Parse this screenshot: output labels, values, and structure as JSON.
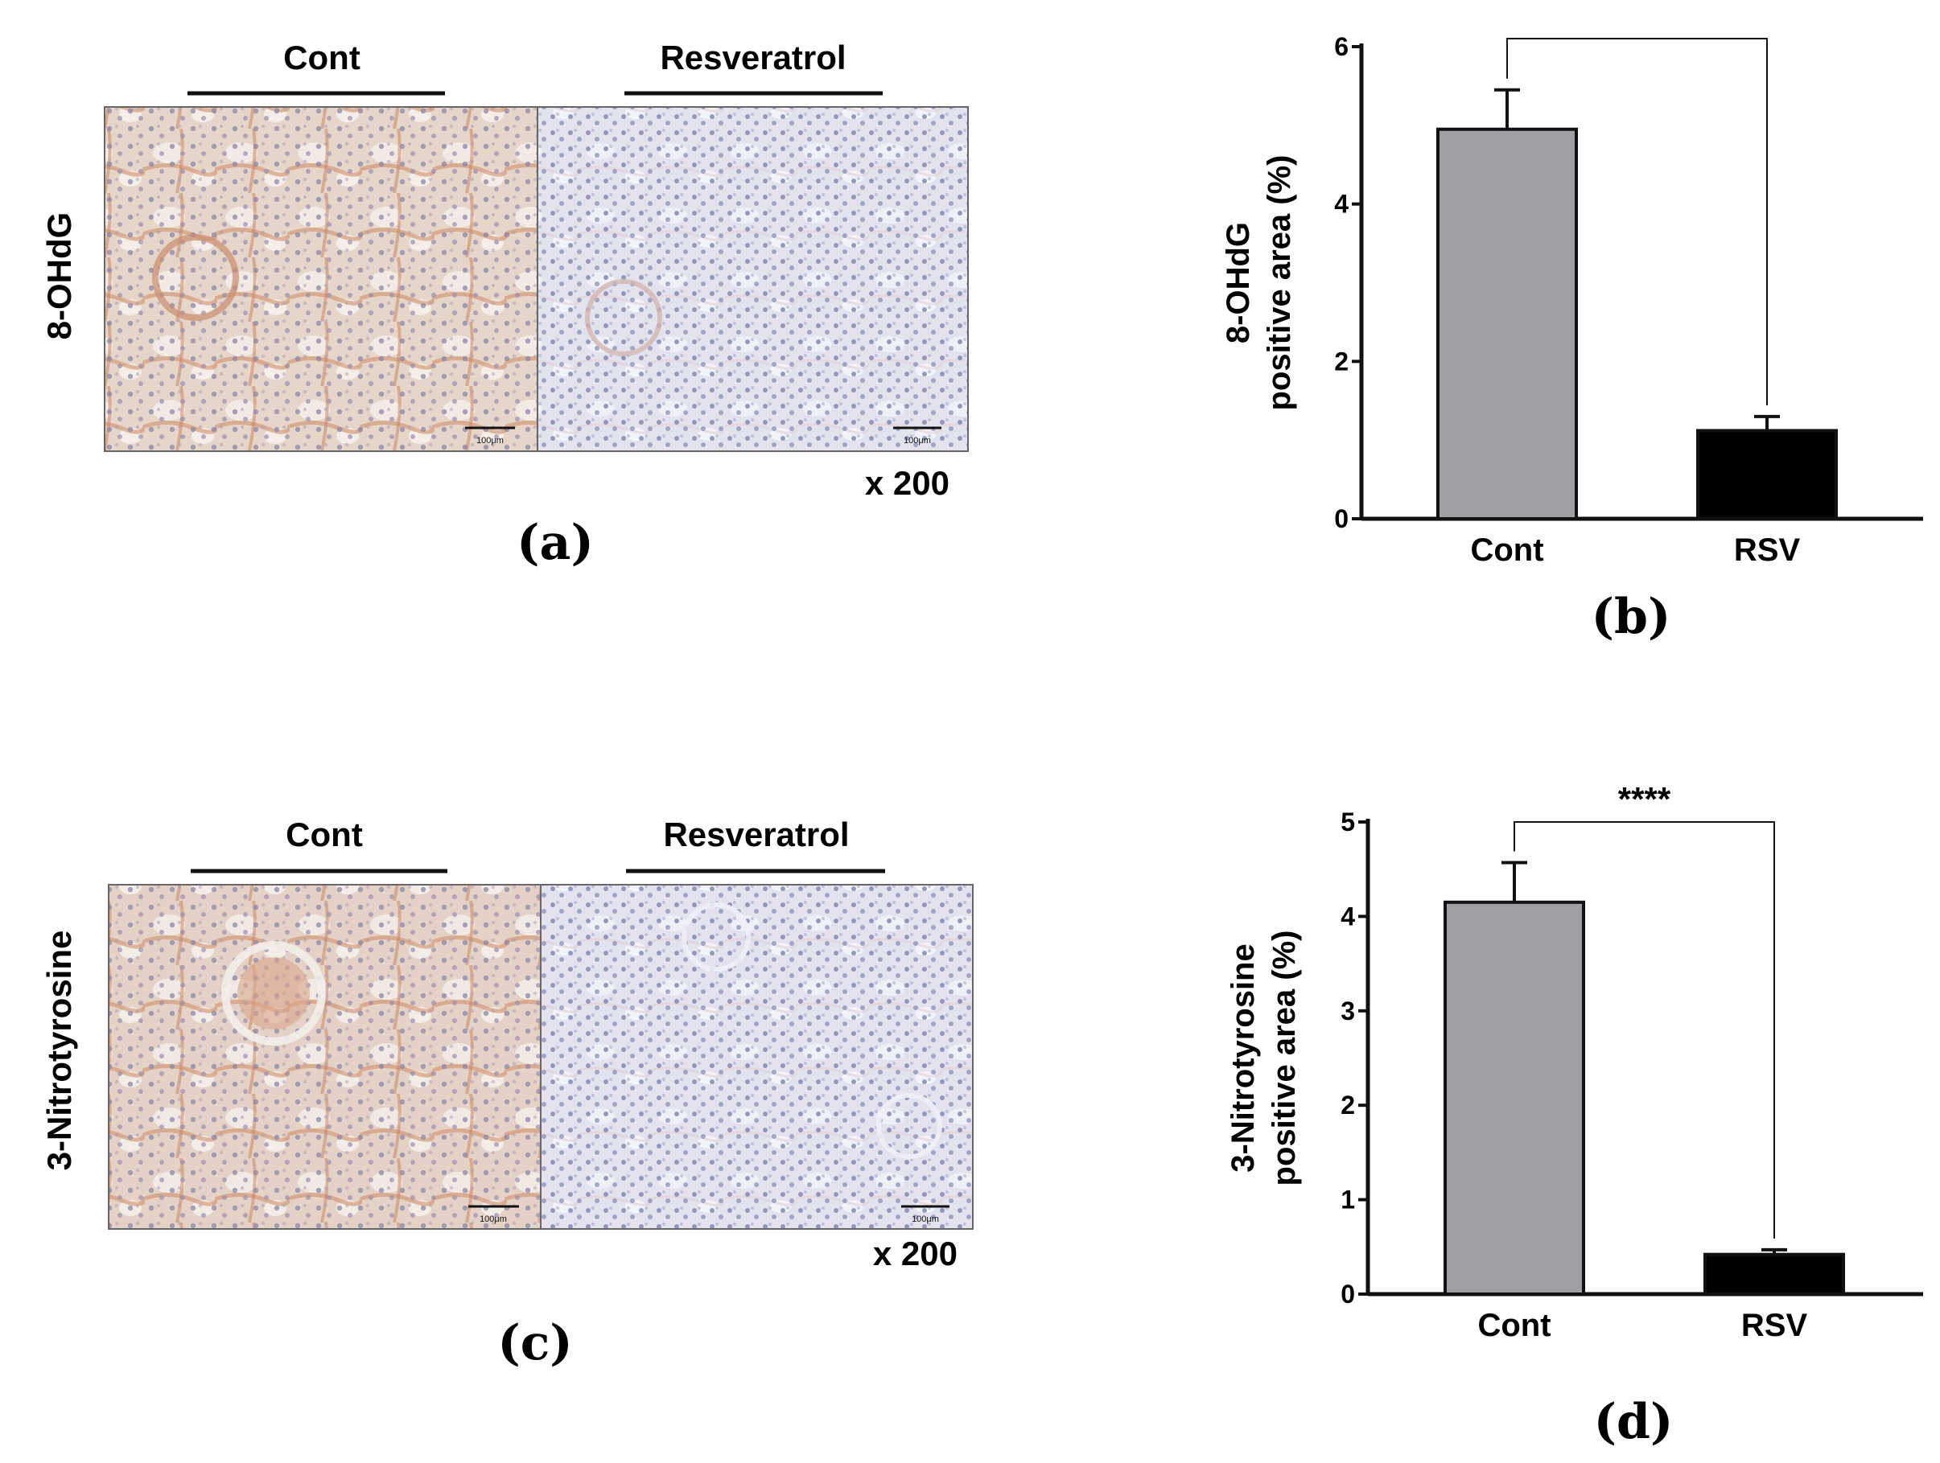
{
  "panel_a": {
    "row_label": "8-OHdG",
    "left_title": "Cont",
    "right_title": "Resveratrol",
    "magnification": "x 200",
    "scale_left": "100μm",
    "scale_right": "100μm",
    "letter": "(a)",
    "colors": {
      "stain": "#d9a78c",
      "tissue": "#e8ddd6",
      "nuclei": "#7a7aa0"
    }
  },
  "panel_c": {
    "row_label": "3-Nitrotyrosine",
    "left_title": "Cont",
    "right_title": "Resveratrol",
    "magnification": "x 200",
    "scale_left": "100μm",
    "scale_right": "100μm",
    "letter": "(c)"
  },
  "panel_b": {
    "letter": "(b)"
  },
  "panel_d": {
    "letter": "(d)"
  },
  "chart_data": [
    {
      "type": "bar",
      "categories": [
        "Cont",
        "RSV"
      ],
      "values": [
        4.95,
        1.12
      ],
      "errors": [
        0.5,
        0.18
      ],
      "colors": [
        "#a0a0a4",
        "#000000"
      ],
      "ylabel_line1": "8-OHdG",
      "ylabel_line2": "positive area (%)",
      "ylim": [
        0,
        6
      ],
      "yticks": [
        "0",
        "2",
        "4",
        "6"
      ],
      "ytick_values": [
        0,
        2,
        4,
        6
      ],
      "significance": ""
    },
    {
      "type": "bar",
      "categories": [
        "Cont",
        "RSV"
      ],
      "values": [
        4.15,
        0.42
      ],
      "errors": [
        0.42,
        0.05
      ],
      "colors": [
        "#a0a0a4",
        "#000000"
      ],
      "ylabel_line1": "3-Nitrotyrosine",
      "ylabel_line2": "positive area (%)",
      "ylim": [
        0,
        5
      ],
      "yticks": [
        "0",
        "1",
        "2",
        "3",
        "4",
        "5"
      ],
      "ytick_values": [
        0,
        1,
        2,
        3,
        4,
        5
      ],
      "significance": "****"
    }
  ]
}
